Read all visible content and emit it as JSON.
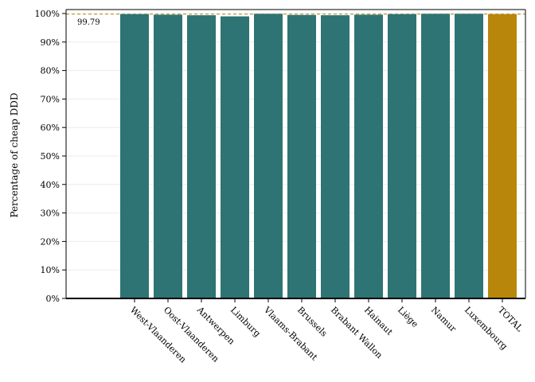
{
  "chart_data": {
    "type": "bar",
    "title": "",
    "xlabel": "",
    "ylabel": "Percentage of cheap DDD",
    "categories": [
      "West-Vlaanderen",
      "Oost-Vlaanderen",
      "Antwerpen",
      "Limburg",
      "Vlaams-Brabant",
      "Brussels",
      "Brabant Wallon",
      "Hainaut",
      "Liège",
      "Namur",
      "Luxembourg",
      "TOTAL"
    ],
    "values": [
      99.8,
      99.6,
      99.4,
      99.0,
      99.9,
      99.5,
      99.4,
      99.6,
      99.8,
      99.9,
      99.9,
      99.79
    ],
    "reference_line": {
      "value": 99.79,
      "label": "99.79",
      "color": "#b8860b",
      "style": "dashed"
    },
    "ylim": [
      0,
      100
    ],
    "yticks": [
      0,
      10,
      20,
      30,
      40,
      50,
      60,
      70,
      80,
      90,
      100
    ],
    "ytick_labels": [
      "0%",
      "10%",
      "20%",
      "30%",
      "40%",
      "50%",
      "60%",
      "70%",
      "80%",
      "90%",
      "100%"
    ],
    "grid": true,
    "bar_color": "#2e7474",
    "highlight_category": "TOTAL",
    "highlight_color": "#b8860b"
  }
}
